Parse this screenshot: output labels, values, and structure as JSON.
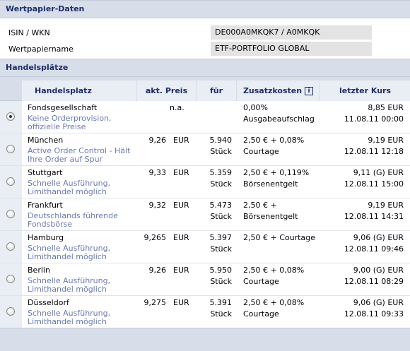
{
  "security_section": {
    "title": "Wertpapier-Daten",
    "isin_label": "ISIN / WKN",
    "isin_value": "DE000A0MKQK7 / A0MKQK",
    "name_label": "Wertpapiername",
    "name_value": "ETF-PORTFOLIO GLOBAL"
  },
  "venues_section": {
    "title": "Handelsplätze",
    "columns": {
      "venue": "Handelsplatz",
      "price": "akt. Preis",
      "for": "für",
      "costs": "Zusatzkosten",
      "costs_info": "i",
      "last": "letzter Kurs"
    },
    "rows": [
      {
        "name": "Fondsgesellschaft",
        "desc": "Keine Orderprovision, offizielle Preise",
        "price": "",
        "cur": "",
        "na": "n.a.",
        "qty": "",
        "unit": "",
        "cost1": "0,00%",
        "cost2": "Ausgabeaufschlag",
        "last_price": "8,85  EUR",
        "last_date": "11.08.11  00:00",
        "selected": true
      },
      {
        "name": "München",
        "desc": "Active Order Control - Hält Ihre Order auf Spur",
        "price": "9,26",
        "cur": "EUR",
        "na": "",
        "qty": "5.940",
        "unit": "Stück",
        "cost1": "2,50 € + 0,08%",
        "cost2": "Courtage",
        "last_price": "9,19  EUR",
        "last_date": "12.08.11  12:18",
        "selected": false
      },
      {
        "name": "Stuttgart",
        "desc": "Schnelle Ausführung, Limithandel möglich",
        "price": "9,33",
        "cur": "EUR",
        "na": "",
        "qty": "5.359",
        "unit": "Stück",
        "cost1": "2,50 € + 0,119%",
        "cost2": "Börsenentgelt",
        "last_price": "9,11  (G)  EUR",
        "last_date": "12.08.11  15:00",
        "selected": false
      },
      {
        "name": "Frankfurt",
        "desc": "Deutschlands führende Fondsbörse",
        "price": "9,32",
        "cur": "EUR",
        "na": "",
        "qty": "5.473",
        "unit": "Stück",
        "cost1": "2,50 € +",
        "cost2": "Börsenentgelt",
        "last_price": "9,19  EUR",
        "last_date": "12.08.11  14:31",
        "selected": false
      },
      {
        "name": "Hamburg",
        "desc": "Schnelle Ausführung, Limithandel möglich",
        "price": "9,265",
        "cur": "EUR",
        "na": "",
        "qty": "5.397",
        "unit": "Stück",
        "cost1": "2,50 € + Courtage",
        "cost2": "",
        "last_price": "9,06  (G)  EUR",
        "last_date": "12.08.11  09:46",
        "selected": false
      },
      {
        "name": "Berlin",
        "desc": "Schnelle Ausführung, Limithandel möglich",
        "price": "9,26",
        "cur": "EUR",
        "na": "",
        "qty": "5.950",
        "unit": "Stück",
        "cost1": "2,50 € + 0,08%",
        "cost2": "Courtage",
        "last_price": "9,00  (G)  EUR",
        "last_date": "12.08.11  08:29",
        "selected": false
      },
      {
        "name": "Düsseldorf",
        "desc": "Schnelle Ausführung, Limithandel möglich",
        "price": "9,275",
        "cur": "EUR",
        "na": "",
        "qty": "5.391",
        "unit": "Stück",
        "cost1": "2,50 € + 0,08%",
        "cost2": "Courtage",
        "last_price": "9,06  (G)  EUR",
        "last_date": "12.08.11  09:33",
        "selected": false
      }
    ]
  }
}
